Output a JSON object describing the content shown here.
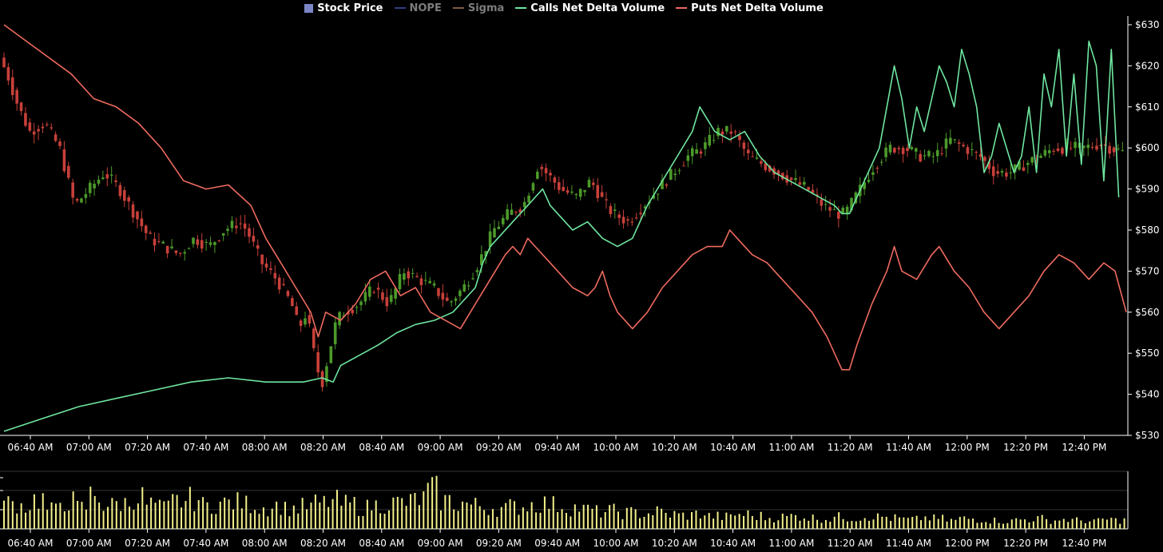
{
  "legend": [
    {
      "label": "Stock Price",
      "swatch": "box",
      "color": "#7b86c6",
      "enabled": true
    },
    {
      "label": "NOPE",
      "swatch": "line",
      "color": "#2e3f86",
      "enabled": false
    },
    {
      "label": "Sigma",
      "swatch": "line",
      "color": "#7e5a45",
      "enabled": false
    },
    {
      "label": "Calls Net Delta Volume",
      "swatch": "line",
      "color": "#6fe6a0",
      "enabled": true
    },
    {
      "label": "Puts Net Delta Volume",
      "swatch": "line",
      "color": "#ef6a5f",
      "enabled": true
    }
  ],
  "colors": {
    "up": "#4c9a2a",
    "down": "#c8403a",
    "calls": "#6fe6a0",
    "puts": "#ef6a5f",
    "volume": "#f3f08a",
    "axis": "#ffffff",
    "grid": "#333333"
  },
  "chart_data": [
    {
      "type": "candlestick",
      "title": "",
      "y_axis": {
        "ticks": [
          "$530",
          "$540",
          "$550",
          "$560",
          "$570",
          "$580",
          "$590",
          "$600",
          "$610",
          "$620",
          "$630"
        ],
        "range": [
          530,
          630
        ],
        "position": "right"
      },
      "x_axis": {
        "ticks": [
          "06:40 AM",
          "07:00 AM",
          "07:20 AM",
          "07:40 AM",
          "08:00 AM",
          "08:20 AM",
          "08:40 AM",
          "09:00 AM",
          "09:20 AM",
          "09:40 AM",
          "10:00 AM",
          "10:20 AM",
          "10:40 AM",
          "11:00 AM",
          "11:20 AM",
          "11:40 AM",
          "12:00 PM",
          "12:20 PM",
          "12:40 PM"
        ],
        "range_minutes": [
          0,
          420
        ]
      },
      "grid": false,
      "legend_placement": "top",
      "series": [
        {
          "name": "Stock Price",
          "kind": "candles",
          "key_points": [
            [
              0,
              622
            ],
            [
              2,
              618
            ],
            [
              5,
              610
            ],
            [
              8,
              604
            ],
            [
              12,
              606
            ],
            [
              16,
              600
            ],
            [
              20,
              586
            ],
            [
              24,
              590
            ],
            [
              28,
              594
            ],
            [
              32,
              590
            ],
            [
              36,
              584
            ],
            [
              40,
              578
            ],
            [
              44,
              576
            ],
            [
              48,
              574
            ],
            [
              52,
              578
            ],
            [
              56,
              576
            ],
            [
              60,
              580
            ],
            [
              64,
              582
            ],
            [
              66,
              580
            ],
            [
              70,
              572
            ],
            [
              74,
              568
            ],
            [
              78,
              562
            ],
            [
              80,
              556
            ],
            [
              82,
              560
            ],
            [
              84,
              550
            ],
            [
              86,
              542
            ],
            [
              88,
              550
            ],
            [
              90,
              558
            ],
            [
              92,
              560
            ],
            [
              96,
              562
            ],
            [
              100,
              566
            ],
            [
              104,
              562
            ],
            [
              108,
              570
            ],
            [
              112,
              568
            ],
            [
              116,
              566
            ],
            [
              120,
              562
            ],
            [
              124,
              566
            ],
            [
              128,
              572
            ],
            [
              132,
              580
            ],
            [
              136,
              584
            ],
            [
              140,
              586
            ],
            [
              144,
              596
            ],
            [
              146,
              594
            ],
            [
              150,
              590
            ],
            [
              154,
              588
            ],
            [
              158,
              592
            ],
            [
              162,
              586
            ],
            [
              164,
              584
            ],
            [
              168,
              582
            ],
            [
              172,
              586
            ],
            [
              176,
              590
            ],
            [
              180,
              594
            ],
            [
              184,
              598
            ],
            [
              188,
              600
            ],
            [
              192,
              604
            ],
            [
              196,
              604
            ],
            [
              200,
              598
            ],
            [
              204,
              596
            ],
            [
              208,
              594
            ],
            [
              212,
              592
            ],
            [
              216,
              590
            ],
            [
              220,
              586
            ],
            [
              224,
              584
            ],
            [
              226,
              584
            ],
            [
              230,
              590
            ],
            [
              234,
              596
            ],
            [
              238,
              600
            ],
            [
              242,
              600
            ],
            [
              246,
              598
            ],
            [
              250,
              598
            ],
            [
              254,
              602
            ],
            [
              258,
              600
            ],
            [
              262,
              598
            ],
            [
              266,
              594
            ],
            [
              270,
              594
            ],
            [
              274,
              596
            ],
            [
              278,
              598
            ],
            [
              282,
              600
            ],
            [
              286,
              600
            ],
            [
              290,
              600
            ],
            [
              294,
              601
            ],
            [
              297,
              600
            ],
            [
              300,
              599
            ]
          ]
        },
        {
          "name": "Calls Net Delta Volume",
          "kind": "line",
          "values": [
            [
              0,
              531
            ],
            [
              10,
              534
            ],
            [
              20,
              537
            ],
            [
              30,
              539
            ],
            [
              40,
              541
            ],
            [
              50,
              543
            ],
            [
              60,
              544
            ],
            [
              70,
              543
            ],
            [
              80,
              543
            ],
            [
              85,
              544
            ],
            [
              88,
              543
            ],
            [
              90,
              547
            ],
            [
              96,
              550
            ],
            [
              100,
              552
            ],
            [
              105,
              555
            ],
            [
              110,
              557
            ],
            [
              115,
              558
            ],
            [
              120,
              560
            ],
            [
              126,
              566
            ],
            [
              128,
              572
            ],
            [
              130,
              576
            ],
            [
              132,
              578
            ],
            [
              136,
              582
            ],
            [
              140,
              586
            ],
            [
              142,
              588
            ],
            [
              144,
              590
            ],
            [
              146,
              586
            ],
            [
              150,
              582
            ],
            [
              152,
              580
            ],
            [
              156,
              582
            ],
            [
              160,
              578
            ],
            [
              164,
              576
            ],
            [
              168,
              578
            ],
            [
              172,
              586
            ],
            [
              176,
              592
            ],
            [
              180,
              598
            ],
            [
              184,
              604
            ],
            [
              186,
              610
            ],
            [
              190,
              604
            ],
            [
              194,
              602
            ],
            [
              198,
              604
            ],
            [
              202,
              598
            ],
            [
              206,
              594
            ],
            [
              210,
              592
            ],
            [
              214,
              590
            ],
            [
              218,
              588
            ],
            [
              222,
              586
            ],
            [
              224,
              584
            ],
            [
              226,
              584
            ],
            [
              230,
              592
            ],
            [
              234,
              600
            ],
            [
              236,
              610
            ],
            [
              238,
              620
            ],
            [
              240,
              612
            ],
            [
              242,
              600
            ],
            [
              244,
              610
            ],
            [
              246,
              604
            ],
            [
              248,
              612
            ],
            [
              250,
              620
            ],
            [
              252,
              616
            ],
            [
              254,
              610
            ],
            [
              256,
              624
            ],
            [
              258,
              618
            ],
            [
              260,
              610
            ],
            [
              262,
              594
            ],
            [
              264,
              598
            ],
            [
              266,
              606
            ],
            [
              268,
              600
            ],
            [
              270,
              594
            ],
            [
              272,
              598
            ],
            [
              274,
              610
            ],
            [
              276,
              594
            ],
            [
              278,
              618
            ],
            [
              280,
              610
            ],
            [
              282,
              624
            ],
            [
              284,
              598
            ],
            [
              286,
              618
            ],
            [
              288,
              596
            ],
            [
              290,
              626
            ],
            [
              292,
              620
            ],
            [
              294,
              592
            ],
            [
              296,
              624
            ],
            [
              298,
              588
            ]
          ]
        },
        {
          "name": "Puts Net Delta Volume",
          "kind": "line",
          "values": [
            [
              0,
              630
            ],
            [
              6,
              626
            ],
            [
              12,
              622
            ],
            [
              18,
              618
            ],
            [
              24,
              612
            ],
            [
              30,
              610
            ],
            [
              36,
              606
            ],
            [
              42,
              600
            ],
            [
              48,
              592
            ],
            [
              54,
              590
            ],
            [
              60,
              591
            ],
            [
              66,
              586
            ],
            [
              70,
              578
            ],
            [
              74,
              572
            ],
            [
              78,
              566
            ],
            [
              82,
              560
            ],
            [
              84,
              554
            ],
            [
              86,
              560
            ],
            [
              90,
              558
            ],
            [
              94,
              562
            ],
            [
              98,
              568
            ],
            [
              102,
              570
            ],
            [
              106,
              564
            ],
            [
              110,
              566
            ],
            [
              114,
              560
            ],
            [
              118,
              558
            ],
            [
              122,
              556
            ],
            [
              126,
              562
            ],
            [
              130,
              568
            ],
            [
              134,
              574
            ],
            [
              136,
              576
            ],
            [
              138,
              574
            ],
            [
              140,
              578
            ],
            [
              142,
              576
            ],
            [
              144,
              574
            ],
            [
              146,
              572
            ],
            [
              150,
              568
            ],
            [
              152,
              566
            ],
            [
              156,
              564
            ],
            [
              158,
              566
            ],
            [
              160,
              570
            ],
            [
              162,
              564
            ],
            [
              164,
              560
            ],
            [
              168,
              556
            ],
            [
              172,
              560
            ],
            [
              176,
              566
            ],
            [
              180,
              570
            ],
            [
              184,
              574
            ],
            [
              188,
              576
            ],
            [
              192,
              576
            ],
            [
              194,
              580
            ],
            [
              196,
              578
            ],
            [
              200,
              574
            ],
            [
              204,
              572
            ],
            [
              208,
              568
            ],
            [
              212,
              564
            ],
            [
              216,
              560
            ],
            [
              220,
              554
            ],
            [
              224,
              546
            ],
            [
              226,
              546
            ],
            [
              228,
              552
            ],
            [
              232,
              562
            ],
            [
              236,
              570
            ],
            [
              238,
              576
            ],
            [
              240,
              570
            ],
            [
              244,
              568
            ],
            [
              248,
              574
            ],
            [
              250,
              576
            ],
            [
              254,
              570
            ],
            [
              258,
              566
            ],
            [
              262,
              560
            ],
            [
              266,
              556
            ],
            [
              270,
              560
            ],
            [
              274,
              564
            ],
            [
              278,
              570
            ],
            [
              282,
              574
            ],
            [
              286,
              572
            ],
            [
              290,
              568
            ],
            [
              294,
              572
            ],
            [
              297,
              570
            ],
            [
              300,
              560
            ]
          ]
        }
      ]
    },
    {
      "type": "bar",
      "title": "",
      "series": [
        {
          "name": "Volume",
          "kind": "bars",
          "values": [
            60,
            55,
            70,
            45,
            65,
            50,
            80,
            55,
            60,
            75,
            58,
            50,
            65,
            70,
            55,
            60,
            62,
            58,
            50,
            55,
            48,
            52,
            60,
            65,
            58,
            50,
            55,
            60,
            62,
            70,
            90,
            66,
            60,
            55,
            50,
            48,
            52,
            58,
            60,
            56,
            50,
            45,
            40,
            42,
            38,
            36,
            40,
            34,
            32,
            35,
            30,
            28,
            34,
            30,
            26,
            28,
            30,
            26,
            24,
            28,
            26,
            30,
            28,
            25,
            22,
            26,
            24,
            20,
            24,
            22,
            20,
            18,
            22,
            24,
            20,
            22,
            20,
            18,
            22,
            20
          ]
        }
      ]
    }
  ]
}
